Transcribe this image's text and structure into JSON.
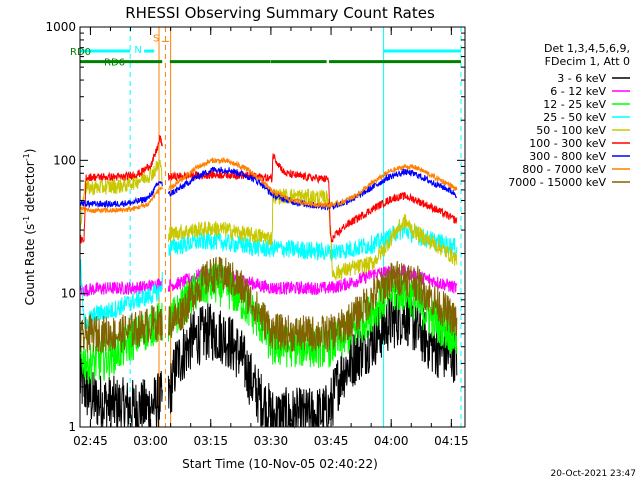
{
  "chart_data": {
    "type": "line",
    "title": "RHESSI Observing Summary Count Rates",
    "xlabel": "Start Time (10-Nov-05 02:40:22)",
    "ylabel_prefix": "Count Rate (s",
    "ylabel_sup1": "-1",
    "ylabel_mid": " detector",
    "ylabel_sup2": "-1",
    "ylabel_suffix": ")",
    "y_scale": "log",
    "ylim": [
      1,
      1000
    ],
    "y_ticks": [
      {
        "value": 1,
        "label": "1"
      },
      {
        "value": 10,
        "label": "10"
      },
      {
        "value": 100,
        "label": "100"
      },
      {
        "value": 1000,
        "label": "1000"
      }
    ],
    "x_units": "minutes",
    "xlim": [
      2.0,
      98.0
    ],
    "x_ticks": [
      {
        "value": 4.6,
        "label": "02:45"
      },
      {
        "value": 19.6,
        "label": "03:00"
      },
      {
        "value": 34.6,
        "label": "03:15"
      },
      {
        "value": 49.6,
        "label": "03:30"
      },
      {
        "value": 64.6,
        "label": "03:45"
      },
      {
        "value": 79.6,
        "label": "04:00"
      },
      {
        "value": 94.6,
        "label": "04:15"
      }
    ],
    "legend": {
      "position": "top-right",
      "header": [
        "Det 1,3,4,5,6,9,",
        "FDecim 1, Att 0"
      ]
    },
    "series": [
      {
        "name": "3 - 6 keV",
        "color": "#000000",
        "values": [
          [
            2,
            2.2
          ],
          [
            5,
            1.6
          ],
          [
            9,
            1.5
          ],
          [
            14,
            1.4
          ],
          [
            19,
            1.4
          ],
          [
            22,
            1.6
          ],
          [
            24,
            1.6
          ],
          [
            26,
            3
          ],
          [
            30,
            4.5
          ],
          [
            34,
            5.2
          ],
          [
            38,
            4.8
          ],
          [
            42,
            3.5
          ],
          [
            46,
            1.8
          ],
          [
            50,
            1.2
          ],
          [
            55,
            1.2
          ],
          [
            60,
            1.2
          ],
          [
            64,
            1.3
          ],
          [
            67,
            2.5
          ],
          [
            71,
            3.5
          ],
          [
            75,
            4.5
          ],
          [
            79,
            6
          ],
          [
            83,
            7
          ],
          [
            86,
            5.5
          ],
          [
            90,
            4
          ],
          [
            94,
            3.5
          ],
          [
            96,
            3.6
          ]
        ]
      },
      {
        "name": "6 - 12 keV",
        "color": "#ff00ff",
        "values": [
          [
            2,
            10.5
          ],
          [
            5,
            10.8
          ],
          [
            10,
            11
          ],
          [
            15,
            11
          ],
          [
            19,
            11.3
          ],
          [
            22,
            12
          ],
          [
            24,
            11.5
          ],
          [
            27,
            12
          ],
          [
            31,
            13.5
          ],
          [
            35,
            14.5
          ],
          [
            39,
            13.5
          ],
          [
            43,
            12.5
          ],
          [
            47,
            11.5
          ],
          [
            50,
            11
          ],
          [
            55,
            11
          ],
          [
            60,
            11
          ],
          [
            64,
            11
          ],
          [
            67,
            11.5
          ],
          [
            71,
            12.5
          ],
          [
            75,
            14
          ],
          [
            79,
            14.5
          ],
          [
            83,
            14.5
          ],
          [
            86,
            13.5
          ],
          [
            90,
            12.5
          ],
          [
            94,
            11.5
          ],
          [
            96,
            11
          ]
        ]
      },
      {
        "name": "12 - 25 keV",
        "color": "#00ff00",
        "values": [
          [
            2,
            3.5
          ],
          [
            4,
            3
          ],
          [
            8,
            3.2
          ],
          [
            13,
            4
          ],
          [
            17,
            5
          ],
          [
            21,
            6
          ],
          [
            24,
            6
          ],
          [
            27,
            7.5
          ],
          [
            31,
            10.5
          ],
          [
            35,
            12
          ],
          [
            39,
            11
          ],
          [
            43,
            8.5
          ],
          [
            47,
            6
          ],
          [
            50,
            4
          ],
          [
            55,
            4
          ],
          [
            60,
            4
          ],
          [
            64,
            4
          ],
          [
            67,
            4.5
          ],
          [
            71,
            5.5
          ],
          [
            75,
            7.5
          ],
          [
            79,
            10
          ],
          [
            83,
            10.5
          ],
          [
            86,
            8.5
          ],
          [
            90,
            6.5
          ],
          [
            94,
            5.2
          ],
          [
            96,
            4.5
          ]
        ]
      },
      {
        "name": "25 - 50 keV",
        "color": "#00ffff",
        "values": [
          [
            2,
            19
          ],
          [
            3,
            6
          ],
          [
            6,
            7
          ],
          [
            10,
            7.5
          ],
          [
            14,
            8.5
          ],
          [
            19,
            9.5
          ],
          [
            22,
            10.5
          ],
          [
            24,
            22
          ],
          [
            27,
            23
          ],
          [
            31,
            24.5
          ],
          [
            35,
            25
          ],
          [
            39,
            24
          ],
          [
            43,
            23
          ],
          [
            47,
            22
          ],
          [
            49.9,
            21.5
          ],
          [
            50.1,
            22
          ],
          [
            55,
            21.5
          ],
          [
            60,
            21
          ],
          [
            64,
            20.5
          ],
          [
            67,
            21
          ],
          [
            71,
            22
          ],
          [
            75,
            23.5
          ],
          [
            78,
            25
          ],
          [
            81,
            29
          ],
          [
            83,
            30
          ],
          [
            85,
            28
          ],
          [
            88,
            26
          ],
          [
            92,
            24
          ],
          [
            96,
            22
          ]
        ]
      },
      {
        "name": "50 - 100 keV",
        "color": "#c8c800",
        "values": [
          [
            2,
            28
          ],
          [
            3,
            62
          ],
          [
            8,
            63
          ],
          [
            13,
            65
          ],
          [
            17,
            72
          ],
          [
            20,
            80
          ],
          [
            22,
            95
          ],
          [
            24,
            28
          ],
          [
            27,
            29
          ],
          [
            31,
            30
          ],
          [
            35,
            31
          ],
          [
            39,
            30
          ],
          [
            43,
            28
          ],
          [
            47,
            27
          ],
          [
            49.9,
            26
          ],
          [
            50.1,
            54
          ],
          [
            55,
            54
          ],
          [
            60,
            53
          ],
          [
            64,
            52
          ],
          [
            65,
            14
          ],
          [
            68,
            15
          ],
          [
            72,
            16
          ],
          [
            75,
            17
          ],
          [
            78,
            22
          ],
          [
            81,
            30
          ],
          [
            83,
            35
          ],
          [
            85,
            30
          ],
          [
            88,
            26
          ],
          [
            92,
            22
          ],
          [
            96,
            18
          ]
        ]
      },
      {
        "name": "100 - 300 keV",
        "color": "#ff0000",
        "values": [
          [
            2,
            26
          ],
          [
            3,
            24
          ],
          [
            3.5,
            75
          ],
          [
            8,
            75
          ],
          [
            13,
            75
          ],
          [
            17,
            80
          ],
          [
            20,
            95
          ],
          [
            21.5,
            130
          ],
          [
            22,
            150
          ],
          [
            24,
            75
          ],
          [
            27,
            76
          ],
          [
            31,
            77
          ],
          [
            35,
            78
          ],
          [
            39,
            78
          ],
          [
            43,
            77
          ],
          [
            47,
            75
          ],
          [
            49.9,
            73
          ],
          [
            50.1,
            110
          ],
          [
            53,
            80
          ],
          [
            57,
            76
          ],
          [
            60,
            74
          ],
          [
            64,
            72
          ],
          [
            64.5,
            25
          ],
          [
            68,
            32
          ],
          [
            72,
            38
          ],
          [
            76,
            45
          ],
          [
            80,
            52
          ],
          [
            83,
            54
          ],
          [
            86,
            50
          ],
          [
            90,
            44
          ],
          [
            94,
            38
          ],
          [
            96,
            35
          ]
        ]
      },
      {
        "name": "300 - 800 keV",
        "color": "#0000ff",
        "values": [
          [
            2,
            48
          ],
          [
            5,
            47
          ],
          [
            10,
            47
          ],
          [
            15,
            48
          ],
          [
            19,
            52
          ],
          [
            22,
            70
          ],
          [
            24,
            55
          ],
          [
            27,
            62
          ],
          [
            31,
            75
          ],
          [
            35,
            85
          ],
          [
            39,
            85
          ],
          [
            43,
            78
          ],
          [
            47,
            68
          ],
          [
            50,
            55
          ],
          [
            55,
            49
          ],
          [
            60,
            46
          ],
          [
            64,
            45
          ],
          [
            67,
            47
          ],
          [
            71,
            53
          ],
          [
            75,
            63
          ],
          [
            79,
            75
          ],
          [
            83,
            82
          ],
          [
            86,
            78
          ],
          [
            90,
            68
          ],
          [
            94,
            60
          ],
          [
            96,
            55
          ]
        ]
      },
      {
        "name": "800 - 7000 keV",
        "color": "#ff8000",
        "values": [
          [
            2,
            43
          ],
          [
            5,
            42
          ],
          [
            10,
            42
          ],
          [
            15,
            43
          ],
          [
            19,
            47
          ],
          [
            22,
            62
          ],
          [
            24,
            60
          ],
          [
            27,
            70
          ],
          [
            31,
            88
          ],
          [
            35,
            100
          ],
          [
            39,
            98
          ],
          [
            43,
            88
          ],
          [
            47,
            72
          ],
          [
            50,
            58
          ],
          [
            55,
            50
          ],
          [
            60,
            47
          ],
          [
            64,
            46
          ],
          [
            67,
            48
          ],
          [
            71,
            55
          ],
          [
            75,
            68
          ],
          [
            79,
            82
          ],
          [
            83,
            90
          ],
          [
            86,
            88
          ],
          [
            90,
            76
          ],
          [
            94,
            66
          ],
          [
            96,
            60
          ]
        ]
      },
      {
        "name": "7000 - 15000 keV",
        "color": "#806400",
        "values": [
          [
            2,
            4.5
          ],
          [
            4,
            5
          ],
          [
            8,
            5
          ],
          [
            12,
            5
          ],
          [
            17,
            5.5
          ],
          [
            20,
            6
          ],
          [
            22,
            6
          ],
          [
            24,
            6
          ],
          [
            27,
            7
          ],
          [
            31,
            11
          ],
          [
            35,
            14
          ],
          [
            39,
            13.5
          ],
          [
            43,
            10.5
          ],
          [
            47,
            7
          ],
          [
            50,
            5.2
          ],
          [
            55,
            5
          ],
          [
            60,
            5
          ],
          [
            64,
            5
          ],
          [
            67,
            5.5
          ],
          [
            71,
            7
          ],
          [
            75,
            9.5
          ],
          [
            79,
            12.5
          ],
          [
            83,
            13.5
          ],
          [
            86,
            12
          ],
          [
            90,
            9
          ],
          [
            94,
            7
          ],
          [
            96,
            6
          ]
        ]
      }
    ],
    "vertical_markers": [
      {
        "x": 2.0,
        "color": "#00ffff",
        "style": "solid"
      },
      {
        "x": 14.5,
        "color": "#00ffff",
        "style": "dashed"
      },
      {
        "x": 77.7,
        "color": "#00ffff",
        "style": "solid"
      },
      {
        "x": 97.0,
        "color": "#00ffff",
        "style": "dashed"
      },
      {
        "x": 21.7,
        "color": "#ff8000",
        "style": "solid"
      },
      {
        "x": 23.3,
        "color": "#ff8000",
        "style": "dashed"
      },
      {
        "x": 24.6,
        "color": "#ff8000",
        "style": "solid"
      }
    ],
    "state_bars": [
      {
        "label": "RD0",
        "color": "#00ffff",
        "y": 660,
        "segments": [
          [
            2,
            14.5
          ],
          [
            18,
            20.5
          ],
          [
            77.7,
            97
          ]
        ]
      },
      {
        "label": "RD6",
        "color": "#008000",
        "y": 550,
        "segments": [
          [
            2,
            22.5
          ],
          [
            24.4,
            49.5
          ],
          [
            49.6,
            63.5
          ],
          [
            64.1,
            97
          ]
        ]
      }
    ],
    "flag_marks": [
      {
        "label": "S",
        "color": "#ff8000",
        "x": 21.0,
        "y": 780
      },
      {
        "label": "N",
        "color": "#00ffff",
        "x": 16.5,
        "y": 640
      }
    ]
  },
  "footer": {
    "timestamp": "20-Oct-2021 23:47"
  }
}
